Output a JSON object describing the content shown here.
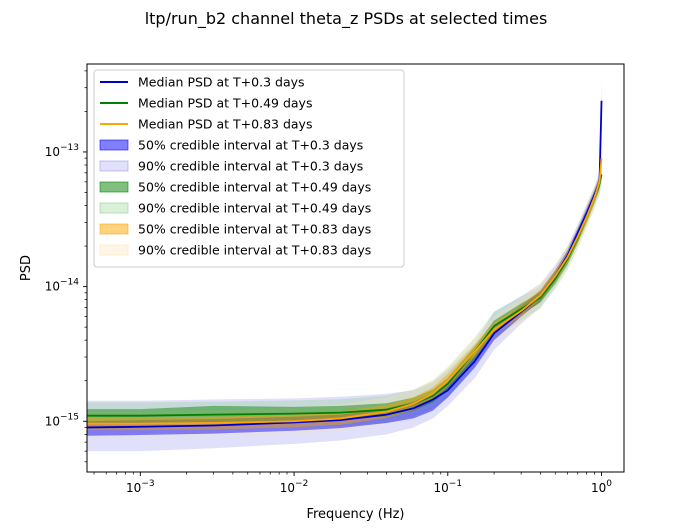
{
  "chart_data": {
    "type": "line",
    "title": "ltp/run_b2 channel theta_z PSDs at selected times",
    "xlabel": "Frequency (Hz)",
    "ylabel": "PSD",
    "xscale": "log",
    "yscale": "log",
    "xlim": [
      0.00045,
      1.4
    ],
    "ylim": [
      4.2e-16,
      4.5e-13
    ],
    "x_ticks": [
      {
        "value": 0.001,
        "base": "10",
        "exp": "−3"
      },
      {
        "value": 0.01,
        "base": "10",
        "exp": "−2"
      },
      {
        "value": 0.1,
        "base": "10",
        "exp": "−1"
      },
      {
        "value": 1,
        "base": "10",
        "exp": "0"
      }
    ],
    "y_ticks": [
      {
        "value": 1e-15,
        "base": "10",
        "exp": "−15"
      },
      {
        "value": 1e-14,
        "base": "10",
        "exp": "−14"
      },
      {
        "value": 1e-13,
        "base": "10",
        "exp": "−13"
      }
    ],
    "legend_position": "upper-left",
    "series": [
      {
        "name": "Median PSD at T+0.3 days",
        "color": "#0000cc",
        "band50_label": "50% credible interval at T+0.3 days",
        "band90_label": "90% credible interval at T+0.3 days",
        "band50_color": "#0000ff",
        "band90_color": "#9999ee",
        "points": [
          [
            0.00045,
            9e-16
          ],
          [
            0.001,
            9.1e-16
          ],
          [
            0.003,
            9.3e-16
          ],
          [
            0.01,
            9.8e-16
          ],
          [
            0.02,
            1.02e-15
          ],
          [
            0.04,
            1.12e-15
          ],
          [
            0.06,
            1.25e-15
          ],
          [
            0.08,
            1.45e-15
          ],
          [
            0.1,
            1.7e-15
          ],
          [
            0.15,
            2.8e-15
          ],
          [
            0.2,
            4.5e-15
          ],
          [
            0.3,
            6.5e-15
          ],
          [
            0.4,
            8.5e-15
          ],
          [
            0.5,
            1.2e-14
          ],
          [
            0.6,
            1.7e-14
          ],
          [
            0.7,
            2.5e-14
          ],
          [
            0.8,
            3.5e-14
          ],
          [
            0.9,
            4.8e-14
          ],
          [
            0.97,
            6e-14
          ],
          [
            0.99,
            1.5e-13
          ],
          [
            1.0,
            2.4e-13
          ]
        ],
        "band50": [
          [
            0.00045,
            7.8e-16,
            1e-15
          ],
          [
            0.001,
            7.9e-16,
            1.02e-15
          ],
          [
            0.003,
            8.1e-16,
            1.04e-15
          ],
          [
            0.01,
            8.5e-16,
            1.08e-15
          ],
          [
            0.02,
            8.9e-16,
            1.12e-15
          ],
          [
            0.04,
            9.7e-16,
            1.25e-15
          ],
          [
            0.06,
            1.05e-15,
            1.4e-15
          ],
          [
            0.08,
            1.2e-15,
            1.62e-15
          ],
          [
            0.1,
            1.5e-15,
            1.92e-15
          ],
          [
            0.15,
            2.5e-15,
            3.1e-15
          ],
          [
            0.2,
            4e-15,
            5e-15
          ],
          [
            0.3,
            6e-15,
            7.2e-15
          ],
          [
            0.4,
            7.8e-15,
            9.3e-15
          ],
          [
            0.5,
            1.1e-14,
            1.32e-14
          ],
          [
            0.6,
            1.55e-14,
            1.85e-14
          ],
          [
            0.7,
            2.3e-14,
            2.7e-14
          ],
          [
            0.8,
            3.2e-14,
            3.8e-14
          ],
          [
            0.9,
            4.4e-14,
            5.2e-14
          ],
          [
            0.97,
            5.5e-14,
            6.6e-14
          ],
          [
            0.99,
            1.3e-13,
            1.7e-13
          ],
          [
            1.0,
            2.2e-13,
            2.6e-13
          ]
        ],
        "band90": [
          [
            0.00045,
            6e-16,
            1.42e-15
          ],
          [
            0.001,
            6e-16,
            1.42e-15
          ],
          [
            0.003,
            6.3e-16,
            1.45e-15
          ],
          [
            0.01,
            6.8e-16,
            1.48e-15
          ],
          [
            0.02,
            7.2e-16,
            1.52e-15
          ],
          [
            0.04,
            8e-16,
            1.6e-15
          ],
          [
            0.06,
            9e-16,
            1.7e-15
          ],
          [
            0.08,
            1.05e-15,
            1.95e-15
          ],
          [
            0.1,
            1.3e-15,
            2.4e-15
          ],
          [
            0.15,
            2.1e-15,
            3.8e-15
          ],
          [
            0.2,
            3.4e-15,
            6.5e-15
          ],
          [
            0.3,
            5.3e-15,
            8.5e-15
          ],
          [
            0.4,
            7e-15,
            1.05e-14
          ],
          [
            0.5,
            1e-14,
            1.45e-14
          ],
          [
            0.6,
            1.4e-14,
            2e-14
          ],
          [
            0.7,
            2.1e-14,
            2.9e-14
          ],
          [
            0.8,
            2.9e-14,
            4.1e-14
          ],
          [
            0.9,
            4e-14,
            5.6e-14
          ],
          [
            0.97,
            5e-14,
            7e-14
          ],
          [
            0.99,
            1.2e-13,
            2e-13
          ],
          [
            1.0,
            2e-13,
            3.4e-13
          ]
        ]
      },
      {
        "name": "Median PSD at T+0.49 days",
        "color": "#008000",
        "band50_label": "50% credible interval at T+0.49 days",
        "band90_label": "90% credible interval at T+0.49 days",
        "band50_color": "#008000",
        "band90_color": "#88cc88",
        "points": [
          [
            0.00045,
            1.1e-15
          ],
          [
            0.001,
            1.1e-15
          ],
          [
            0.003,
            1.12e-15
          ],
          [
            0.01,
            1.14e-15
          ],
          [
            0.02,
            1.16e-15
          ],
          [
            0.04,
            1.22e-15
          ],
          [
            0.06,
            1.35e-15
          ],
          [
            0.08,
            1.55e-15
          ],
          [
            0.1,
            1.9e-15
          ],
          [
            0.15,
            3.3e-15
          ],
          [
            0.2,
            5.1e-15
          ],
          [
            0.3,
            6.8e-15
          ],
          [
            0.4,
            8.3e-15
          ],
          [
            0.5,
            1.15e-14
          ],
          [
            0.6,
            1.6e-14
          ],
          [
            0.7,
            2.3e-14
          ],
          [
            0.8,
            3.3e-14
          ],
          [
            0.9,
            4.6e-14
          ],
          [
            0.97,
            5.8e-14
          ],
          [
            1.0,
            6.8e-14
          ]
        ],
        "band50": [
          [
            0.00045,
            9.7e-16,
            1.23e-15
          ],
          [
            0.001,
            9.7e-16,
            1.23e-15
          ],
          [
            0.003,
            9.9e-16,
            1.3e-15
          ],
          [
            0.01,
            1.01e-15,
            1.28e-15
          ],
          [
            0.02,
            1.03e-15,
            1.3e-15
          ],
          [
            0.04,
            1.08e-15,
            1.36e-15
          ],
          [
            0.06,
            1.2e-15,
            1.5e-15
          ],
          [
            0.08,
            1.38e-15,
            1.72e-15
          ],
          [
            0.1,
            1.7e-15,
            2.1e-15
          ],
          [
            0.15,
            2.9e-15,
            3.6e-15
          ],
          [
            0.2,
            4.6e-15,
            5.6e-15
          ],
          [
            0.3,
            6.2e-15,
            7.5e-15
          ],
          [
            0.4,
            7.6e-15,
            9.1e-15
          ],
          [
            0.5,
            1.05e-14,
            1.26e-14
          ],
          [
            0.6,
            1.46e-14,
            1.75e-14
          ],
          [
            0.7,
            2.1e-14,
            2.5e-14
          ],
          [
            0.8,
            3e-14,
            3.6e-14
          ],
          [
            0.9,
            4.2e-14,
            5e-14
          ],
          [
            0.97,
            5.3e-14,
            6.3e-14
          ],
          [
            1.0,
            6.2e-14,
            7.4e-14
          ]
        ],
        "band90": [
          [
            0.00045,
            8.6e-16,
            1.38e-15
          ],
          [
            0.001,
            8.6e-16,
            1.38e-15
          ],
          [
            0.003,
            8.8e-16,
            1.4e-15
          ],
          [
            0.01,
            9e-16,
            1.43e-15
          ],
          [
            0.02,
            9.2e-16,
            1.46e-15
          ],
          [
            0.04,
            9.7e-16,
            1.55e-15
          ],
          [
            0.06,
            1.08e-15,
            1.72e-15
          ],
          [
            0.08,
            1.24e-15,
            2e-15
          ],
          [
            0.1,
            1.52e-15,
            2.5e-15
          ],
          [
            0.15,
            2.6e-15,
            4.2e-15
          ],
          [
            0.2,
            4.2e-15,
            6.5e-15
          ],
          [
            0.3,
            5.6e-15,
            8.4e-15
          ],
          [
            0.4,
            6.9e-15,
            1e-14
          ],
          [
            0.5,
            9.6e-15,
            1.39e-14
          ],
          [
            0.6,
            1.33e-14,
            1.95e-14
          ],
          [
            0.7,
            1.9e-14,
            2.8e-14
          ],
          [
            0.8,
            2.75e-14,
            4e-14
          ],
          [
            0.9,
            3.8e-14,
            5.5e-14
          ],
          [
            0.97,
            4.8e-14,
            7e-14
          ],
          [
            1.0,
            5.6e-14,
            8.2e-14
          ]
        ]
      },
      {
        "name": "Median PSD at T+0.83 days",
        "color": "#ffa500",
        "band50_label": "50% credible interval at T+0.83 days",
        "band90_label": "90% credible interval at T+0.83 days",
        "band50_color": "#ffa500",
        "band90_color": "#ffe0b0",
        "points": [
          [
            0.00045,
            9.6e-16
          ],
          [
            0.001,
            9.6e-16
          ],
          [
            0.003,
            9.7e-16
          ],
          [
            0.01,
            1e-15
          ],
          [
            0.02,
            1.05e-15
          ],
          [
            0.04,
            1.18e-15
          ],
          [
            0.06,
            1.35e-15
          ],
          [
            0.08,
            1.6e-15
          ],
          [
            0.1,
            2e-15
          ],
          [
            0.15,
            3.3e-15
          ],
          [
            0.2,
            4.8e-15
          ],
          [
            0.3,
            6.6e-15
          ],
          [
            0.4,
            8.6e-15
          ],
          [
            0.5,
            1.2e-14
          ],
          [
            0.6,
            1.65e-14
          ],
          [
            0.7,
            2.35e-14
          ],
          [
            0.8,
            3.3e-14
          ],
          [
            0.9,
            4.6e-14
          ],
          [
            0.97,
            6e-14
          ],
          [
            1.0,
            9e-14
          ]
        ],
        "band50": [
          [
            0.00045,
            8.6e-16,
            1.07e-15
          ],
          [
            0.001,
            8.6e-16,
            1.07e-15
          ],
          [
            0.003,
            8.7e-16,
            1.08e-15
          ],
          [
            0.01,
            9e-16,
            1.12e-15
          ],
          [
            0.02,
            9.4e-16,
            1.18e-15
          ],
          [
            0.04,
            1.06e-15,
            1.32e-15
          ],
          [
            0.06,
            1.21e-15,
            1.51e-15
          ],
          [
            0.08,
            1.44e-15,
            1.79e-15
          ],
          [
            0.1,
            1.8e-15,
            2.25e-15
          ],
          [
            0.15,
            3e-15,
            3.7e-15
          ],
          [
            0.2,
            4.4e-15,
            5.4e-15
          ],
          [
            0.3,
            6e-15,
            7.3e-15
          ],
          [
            0.4,
            7.9e-15,
            9.5e-15
          ],
          [
            0.5,
            1.1e-14,
            1.32e-14
          ],
          [
            0.6,
            1.5e-14,
            1.82e-14
          ],
          [
            0.7,
            2.15e-14,
            2.6e-14
          ],
          [
            0.8,
            3e-14,
            3.65e-14
          ],
          [
            0.9,
            4.2e-14,
            5.1e-14
          ],
          [
            0.97,
            5.5e-14,
            6.6e-14
          ],
          [
            1.0,
            8.2e-14,
            9.8e-14
          ]
        ],
        "band90": [
          [
            0.00045,
            7.7e-16,
            1.2e-15
          ],
          [
            0.001,
            7.7e-16,
            1.2e-15
          ],
          [
            0.003,
            7.8e-16,
            1.21e-15
          ],
          [
            0.01,
            8.1e-16,
            1.26e-15
          ],
          [
            0.02,
            8.5e-16,
            1.33e-15
          ],
          [
            0.04,
            9.5e-16,
            1.5e-15
          ],
          [
            0.06,
            1.09e-15,
            1.72e-15
          ],
          [
            0.08,
            1.3e-15,
            2.05e-15
          ],
          [
            0.1,
            1.62e-15,
            2.55e-15
          ],
          [
            0.15,
            2.7e-15,
            4.2e-15
          ],
          [
            0.2,
            3.9e-15,
            6e-15
          ],
          [
            0.3,
            5.4e-15,
            8.2e-15
          ],
          [
            0.4,
            7.1e-15,
            1.06e-14
          ],
          [
            0.5,
            9.9e-15,
            1.46e-14
          ],
          [
            0.6,
            1.36e-14,
            2e-14
          ],
          [
            0.7,
            1.94e-14,
            2.85e-14
          ],
          [
            0.8,
            2.7e-14,
            4e-14
          ],
          [
            0.9,
            3.8e-14,
            5.6e-14
          ],
          [
            0.97,
            5e-14,
            7.3e-14
          ],
          [
            1.0,
            7.4e-14,
            1.1e-13
          ]
        ]
      }
    ]
  }
}
